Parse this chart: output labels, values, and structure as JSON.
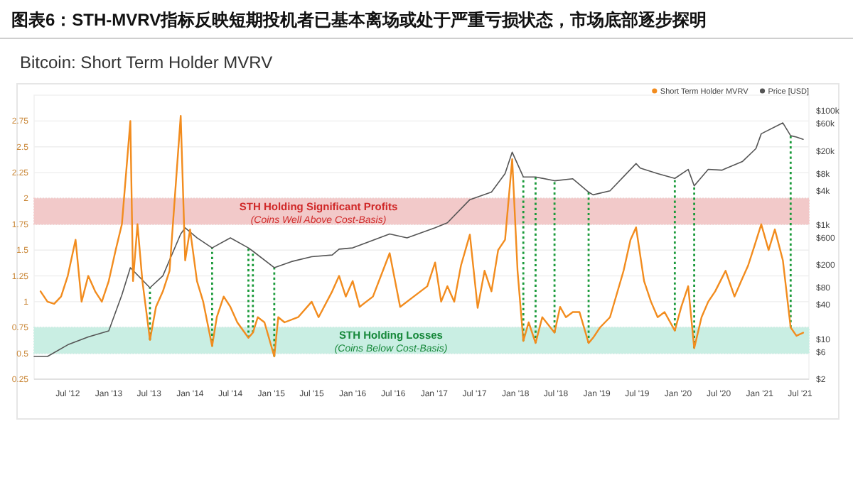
{
  "chart_data": {
    "type": "line",
    "title": "图表6：STH-MVRV指标反映短期投机者已基本离场或处于严重亏损状态，市场底部逐步探明",
    "subtitle": "Bitcoin: Short Term Holder MVRV",
    "xlim": [
      "2012-02-01",
      "2021-08-10"
    ],
    "xticks": [
      {
        "value": "2012-07-01",
        "label": "Jul '12"
      },
      {
        "value": "2013-01-01",
        "label": "Jan '13"
      },
      {
        "value": "2013-07-01",
        "label": "Jul '13"
      },
      {
        "value": "2014-01-01",
        "label": "Jan '14"
      },
      {
        "value": "2014-07-01",
        "label": "Jul '14"
      },
      {
        "value": "2015-01-01",
        "label": "Jan '15"
      },
      {
        "value": "2015-07-01",
        "label": "Jul '15"
      },
      {
        "value": "2016-01-01",
        "label": "Jan '16"
      },
      {
        "value": "2016-07-01",
        "label": "Jul '16"
      },
      {
        "value": "2017-01-01",
        "label": "Jan '17"
      },
      {
        "value": "2017-07-01",
        "label": "Jul '17"
      },
      {
        "value": "2018-01-01",
        "label": "Jan '18"
      },
      {
        "value": "2018-07-01",
        "label": "Jul '18"
      },
      {
        "value": "2019-01-01",
        "label": "Jan '19"
      },
      {
        "value": "2019-07-01",
        "label": "Jul '19"
      },
      {
        "value": "2020-01-01",
        "label": "Jan '20"
      },
      {
        "value": "2020-07-01",
        "label": "Jul '20"
      },
      {
        "value": "2021-01-01",
        "label": "Jan '21"
      },
      {
        "value": "2021-07-01",
        "label": "Jul '21"
      }
    ],
    "ylim": [
      0.25,
      3.0
    ],
    "yticks": [
      0.25,
      0.5,
      0.75,
      1,
      1.25,
      1.5,
      1.75,
      2,
      2.25,
      2.5,
      2.75
    ],
    "log": "y2",
    "y2lim": [
      2,
      190000
    ],
    "y2ticks": [
      {
        "value": 2,
        "label": "$2"
      },
      {
        "value": 6,
        "label": "$6"
      },
      {
        "value": 10,
        "label": "$10"
      },
      {
        "value": 40,
        "label": "$40"
      },
      {
        "value": 80,
        "label": "$80"
      },
      {
        "value": 200,
        "label": "$200"
      },
      {
        "value": 600,
        "label": "$600"
      },
      {
        "value": 1000,
        "label": "$1k"
      },
      {
        "value": 4000,
        "label": "$4k"
      },
      {
        "value": 8000,
        "label": "$8k"
      },
      {
        "value": 20000,
        "label": "$20k"
      },
      {
        "value": 60000,
        "label": "$60k"
      },
      {
        "value": 100000,
        "label": "$100k"
      }
    ],
    "grid": "y",
    "legend": "top right",
    "series": [
      {
        "name": "Short Term Holder MVRV",
        "color": "#f28c1e",
        "x": [
          "2012-03-01",
          "2012-04-01",
          "2012-05-01",
          "2012-06-01",
          "2012-07-01",
          "2012-08-05",
          "2012-09-01",
          "2012-10-01",
          "2012-11-01",
          "2012-12-01",
          "2013-01-01",
          "2013-02-01",
          "2013-03-01",
          "2013-04-08",
          "2013-04-20",
          "2013-05-10",
          "2013-06-01",
          "2013-07-05",
          "2013-08-01",
          "2013-09-01",
          "2013-10-01",
          "2013-11-20",
          "2013-12-10",
          "2014-01-01",
          "2014-02-01",
          "2014-03-01",
          "2014-04-10",
          "2014-05-01",
          "2014-06-01",
          "2014-07-01",
          "2014-08-01",
          "2014-09-20",
          "2014-10-10",
          "2014-11-01",
          "2014-12-01",
          "2015-01-14",
          "2015-02-01",
          "2015-03-01",
          "2015-05-01",
          "2015-07-01",
          "2015-08-01",
          "2015-10-01",
          "2015-11-01",
          "2015-12-01",
          "2016-01-01",
          "2016-02-01",
          "2016-04-01",
          "2016-06-15",
          "2016-08-01",
          "2016-10-01",
          "2016-12-01",
          "2017-01-05",
          "2017-02-01",
          "2017-03-01",
          "2017-04-01",
          "2017-05-01",
          "2017-06-10",
          "2017-07-15",
          "2017-08-15",
          "2017-09-15",
          "2017-10-15",
          "2017-11-15",
          "2017-12-17",
          "2018-01-10",
          "2018-02-05",
          "2018-03-01",
          "2018-04-01",
          "2018-05-01",
          "2018-06-25",
          "2018-07-20",
          "2018-08-15",
          "2018-09-15",
          "2018-10-15",
          "2018-11-25",
          "2018-12-15",
          "2019-01-15",
          "2019-03-01",
          "2019-05-01",
          "2019-06-01",
          "2019-06-26",
          "2019-08-01",
          "2019-09-01",
          "2019-10-01",
          "2019-11-01",
          "2019-12-17",
          "2020-01-15",
          "2020-02-15",
          "2020-03-13",
          "2020-04-15",
          "2020-05-15",
          "2020-06-15",
          "2020-08-01",
          "2020-09-10",
          "2020-10-10",
          "2020-11-10",
          "2020-12-10",
          "2021-01-08",
          "2021-02-10",
          "2021-03-10",
          "2021-04-15",
          "2021-05-20",
          "2021-06-15",
          "2021-07-15"
        ],
        "values": [
          1.1,
          1.0,
          0.98,
          1.05,
          1.25,
          1.6,
          1.0,
          1.25,
          1.1,
          1.0,
          1.2,
          1.5,
          1.75,
          2.75,
          1.2,
          1.75,
          1.2,
          0.63,
          0.95,
          1.1,
          1.3,
          2.8,
          1.4,
          1.7,
          1.2,
          1.0,
          0.57,
          0.85,
          1.05,
          0.95,
          0.8,
          0.65,
          0.7,
          0.85,
          0.8,
          0.47,
          0.85,
          0.8,
          0.85,
          1.0,
          0.85,
          1.1,
          1.25,
          1.05,
          1.2,
          0.95,
          1.05,
          1.47,
          0.95,
          1.05,
          1.15,
          1.38,
          1.0,
          1.15,
          1.0,
          1.35,
          1.65,
          0.94,
          1.3,
          1.1,
          1.5,
          1.6,
          2.38,
          1.3,
          0.62,
          0.8,
          0.6,
          0.85,
          0.7,
          0.95,
          0.85,
          0.9,
          0.9,
          0.6,
          0.65,
          0.75,
          0.85,
          1.3,
          1.6,
          1.72,
          1.2,
          1.0,
          0.85,
          0.9,
          0.72,
          0.95,
          1.15,
          0.55,
          0.85,
          1.0,
          1.1,
          1.3,
          1.05,
          1.2,
          1.35,
          1.55,
          1.75,
          1.5,
          1.7,
          1.4,
          0.75,
          0.67,
          0.7
        ]
      },
      {
        "name": "Price [USD]",
        "color": "#555555",
        "axis": "y2",
        "x": [
          "2012-02-01",
          "2012-04-01",
          "2012-07-01",
          "2012-10-01",
          "2013-01-01",
          "2013-03-01",
          "2013-04-08",
          "2013-07-05",
          "2013-09-01",
          "2013-11-20",
          "2013-12-10",
          "2014-02-01",
          "2014-04-10",
          "2014-07-01",
          "2014-09-20",
          "2014-10-10",
          "2015-01-14",
          "2015-04-01",
          "2015-07-01",
          "2015-10-01",
          "2015-11-01",
          "2016-01-01",
          "2016-06-15",
          "2016-09-01",
          "2017-01-05",
          "2017-03-01",
          "2017-06-10",
          "2017-09-15",
          "2017-11-15",
          "2017-12-17",
          "2018-02-05",
          "2018-04-01",
          "2018-06-25",
          "2018-09-15",
          "2018-11-25",
          "2018-12-15",
          "2019-03-01",
          "2019-06-26",
          "2019-07-15",
          "2019-10-01",
          "2019-12-17",
          "2020-02-15",
          "2020-03-13",
          "2020-05-15",
          "2020-07-15",
          "2020-10-15",
          "2020-12-15",
          "2021-01-08",
          "2021-04-15",
          "2021-05-20",
          "2021-06-15",
          "2021-07-15"
        ],
        "values": [
          5,
          5,
          8,
          11,
          14,
          60,
          180,
          80,
          130,
          700,
          900,
          600,
          400,
          600,
          400,
          350,
          180,
          230,
          280,
          300,
          380,
          400,
          700,
          600,
          900,
          1100,
          2800,
          3800,
          8000,
          19000,
          7000,
          7000,
          6000,
          6500,
          3800,
          3400,
          4000,
          12000,
          10000,
          8000,
          6600,
          9500,
          4900,
          9500,
          9200,
          13000,
          22000,
          40000,
          62000,
          37000,
          35000,
          32000
        ]
      }
    ],
    "bands": [
      {
        "axis": "y",
        "from": 1.75,
        "to": 2.0,
        "label": "STH Holding Significant Profits",
        "color": "#f2c9c9"
      },
      {
        "axis": "y",
        "from": 0.5,
        "to": 0.75,
        "label": "STH Holding Losses",
        "color": "#c9eee3"
      }
    ],
    "annotations": [
      "(Coins Well Above Cost-Basis)",
      "(Coins Below Cost-Basis)"
    ],
    "ref_lines": [
      {
        "axis": "x",
        "value": "2013-07-05",
        "color": "#1a9a3a",
        "line_style": "dotted"
      },
      {
        "axis": "x",
        "value": "2014-04-10",
        "color": "#1a9a3a",
        "line_style": "dotted"
      },
      {
        "axis": "x",
        "value": "2014-09-20",
        "color": "#1a9a3a",
        "line_style": "dotted"
      },
      {
        "axis": "x",
        "value": "2014-10-10",
        "color": "#1a9a3a",
        "line_style": "dotted"
      },
      {
        "axis": "x",
        "value": "2015-01-14",
        "color": "#1a9a3a",
        "line_style": "dotted"
      },
      {
        "axis": "x",
        "value": "2018-02-05",
        "color": "#1a9a3a",
        "line_style": "dotted"
      },
      {
        "axis": "x",
        "value": "2018-04-01",
        "color": "#1a9a3a",
        "line_style": "dotted"
      },
      {
        "axis": "x",
        "value": "2018-06-25",
        "color": "#1a9a3a",
        "line_style": "dotted"
      },
      {
        "axis": "x",
        "value": "2018-11-25",
        "color": "#1a9a3a",
        "line_style": "dotted"
      },
      {
        "axis": "x",
        "value": "2019-12-17",
        "color": "#1a9a3a",
        "line_style": "dotted"
      },
      {
        "axis": "x",
        "value": "2020-03-13",
        "color": "#1a9a3a",
        "line_style": "dotted"
      },
      {
        "axis": "x",
        "value": "2021-05-20",
        "color": "#1a9a3a",
        "line_style": "dotted"
      }
    ]
  }
}
